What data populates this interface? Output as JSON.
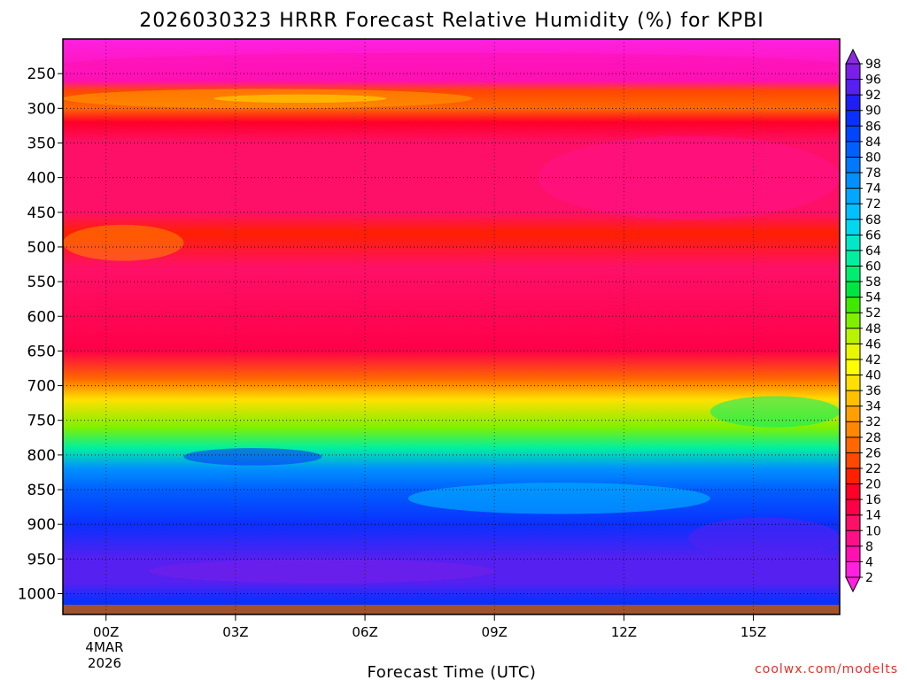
{
  "chart_data": {
    "type": "heatmap",
    "title": "2026030323 HRRR Forecast Relative Humidity (%) for KPBI",
    "xlabel": "Forecast Time (UTC)",
    "ylabel": "",
    "x_ticks": [
      "00Z",
      "03Z",
      "06Z",
      "09Z",
      "12Z",
      "15Z"
    ],
    "x_tick_hours": [
      0,
      3,
      6,
      9,
      12,
      15
    ],
    "x_range_hours": [
      -1,
      17
    ],
    "date_label": [
      "4MAR",
      "2026"
    ],
    "y_ticks": [
      250,
      300,
      350,
      400,
      450,
      500,
      550,
      600,
      650,
      700,
      750,
      800,
      850,
      900,
      950,
      1000
    ],
    "y_axis": "pressure (hPa), inverted",
    "y_range": [
      200,
      1030
    ],
    "colorbar_levels": [
      98,
      96,
      92,
      90,
      86,
      84,
      80,
      78,
      74,
      72,
      68,
      66,
      64,
      60,
      58,
      54,
      52,
      48,
      46,
      42,
      40,
      36,
      34,
      32,
      28,
      26,
      22,
      20,
      16,
      14,
      10,
      8,
      4,
      2
    ],
    "colorbar_colors": [
      "#8a2be2",
      "#7a1fe8",
      "#5520f0",
      "#1f1ff5",
      "#0a30ff",
      "#0046ff",
      "#0060ff",
      "#0078ff",
      "#0090ff",
      "#00a8ff",
      "#00c0ff",
      "#00d8f0",
      "#00e8c8",
      "#00f0a0",
      "#00ee70",
      "#00e640",
      "#40ea00",
      "#80f000",
      "#b8f400",
      "#e8f800",
      "#ffff00",
      "#ffe000",
      "#ffc000",
      "#ffa000",
      "#ff8800",
      "#ff6800",
      "#ff4800",
      "#ff2000",
      "#ff0028",
      "#ff0048",
      "#ff1068",
      "#ff1088",
      "#ff10b0",
      "#ff20e0"
    ],
    "rh_profile": [
      {
        "p": 200,
        "rh": 2
      },
      {
        "p": 260,
        "rh": 6
      },
      {
        "p": 275,
        "rh": 24
      },
      {
        "p": 300,
        "rh": 26
      },
      {
        "p": 320,
        "rh": 18
      },
      {
        "p": 350,
        "rh": 12
      },
      {
        "p": 450,
        "rh": 12
      },
      {
        "p": 480,
        "rh": 20
      },
      {
        "p": 530,
        "rh": 12
      },
      {
        "p": 650,
        "rh": 14
      },
      {
        "p": 690,
        "rh": 26
      },
      {
        "p": 720,
        "rh": 38
      },
      {
        "p": 760,
        "rh": 48
      },
      {
        "p": 790,
        "rh": 62
      },
      {
        "p": 820,
        "rh": 74
      },
      {
        "p": 850,
        "rh": 82
      },
      {
        "p": 900,
        "rh": 88
      },
      {
        "p": 950,
        "rh": 92
      },
      {
        "p": 985,
        "rh": 94
      },
      {
        "p": 1010,
        "rh": 88
      }
    ],
    "credit": "coolwx.com/modelts",
    "credit_color": "#e0302e",
    "ground_color": "#a0522d"
  }
}
